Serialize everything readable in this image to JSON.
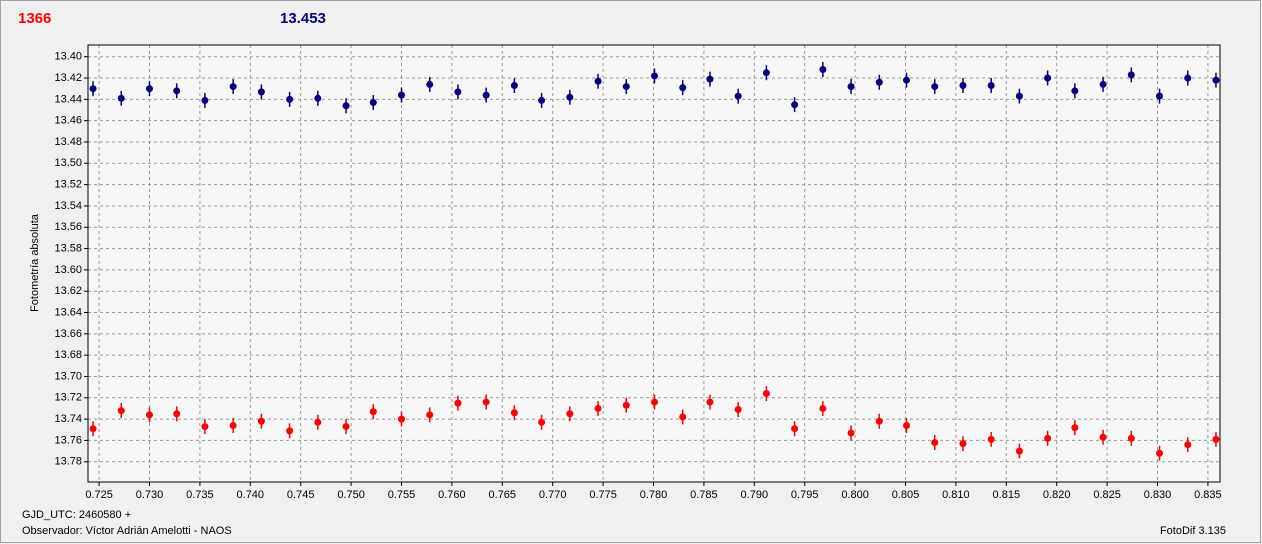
{
  "chart_data": {
    "type": "scatter",
    "header_left": "1366",
    "header_right": "13.453",
    "ylabel": "Fotometría absoluta",
    "footer_date": "GJD_UTC: 2460580 +",
    "footer_observer": "Observador: Víctor Adrián Amelotti - NAOS",
    "footer_software": "FotoDif 3.135",
    "xlim": [
      0.7239,
      0.8362
    ],
    "ylim": [
      13.389,
      13.799
    ],
    "y_inverted": true,
    "grid": true,
    "xticks": [
      0.725,
      {
        "value": 0.73,
        "label": "0.730"
      },
      0.735,
      {
        "value": 0.74,
        "label": "0.740"
      },
      0.745,
      {
        "value": 0.75,
        "label": "0.750"
      },
      0.755,
      {
        "value": 0.76,
        "label": "0.760"
      },
      0.765,
      {
        "value": 0.77,
        "label": "0.770"
      },
      0.775,
      {
        "value": 0.78,
        "label": "0.780"
      },
      0.785,
      {
        "value": 0.79,
        "label": "0.790"
      },
      0.795,
      {
        "value": 0.8,
        "label": "0.800"
      },
      0.805,
      {
        "value": 0.81,
        "label": "0.810"
      },
      0.815,
      {
        "value": 0.82,
        "label": "0.820"
      },
      0.825,
      {
        "value": 0.83,
        "label": "0.830"
      },
      0.835
    ],
    "yticks": [
      {
        "value": 13.4,
        "label": "13.40"
      },
      13.42,
      13.44,
      13.46,
      13.48,
      {
        "value": 13.5,
        "label": "13.50"
      },
      13.52,
      13.54,
      13.56,
      13.58,
      {
        "value": 13.6,
        "label": "13.60"
      },
      13.62,
      13.64,
      13.66,
      13.68,
      {
        "value": 13.7,
        "label": "13.70"
      },
      13.72,
      13.74,
      13.76,
      13.78
    ],
    "x": [
      0.7244,
      0.7272,
      0.73,
      0.7327,
      0.7355,
      0.7383,
      0.7411,
      0.7439,
      0.7467,
      0.7495,
      0.7522,
      0.755,
      0.7578,
      0.7606,
      0.7634,
      0.7662,
      0.7689,
      0.7717,
      0.7745,
      0.7773,
      0.7801,
      0.7829,
      0.7856,
      0.7884,
      0.7912,
      0.794,
      0.7968,
      0.7996,
      0.8024,
      0.8051,
      0.8079,
      0.8107,
      0.8135,
      0.8163,
      0.8191,
      0.8218,
      0.8246,
      0.8274,
      0.8302,
      0.833,
      0.8358
    ],
    "series": [
      {
        "color": "#000080",
        "error": 0.007,
        "values": [
          13.43,
          13.439,
          13.43,
          13.432,
          13.441,
          13.428,
          13.433,
          13.44,
          13.439,
          13.446,
          13.443,
          13.436,
          13.426,
          13.433,
          13.436,
          13.427,
          13.441,
          13.438,
          13.423,
          13.428,
          13.418,
          13.429,
          13.421,
          13.437,
          13.415,
          13.445,
          13.412,
          13.428,
          13.424,
          13.422,
          13.428,
          13.427,
          13.427,
          13.437,
          13.42,
          13.432,
          13.426,
          13.417,
          13.437,
          13.42,
          13.422
        ]
      },
      {
        "color": "#ff0000",
        "error": 0.007,
        "values": [
          13.749,
          13.732,
          13.736,
          13.735,
          13.747,
          13.746,
          13.742,
          13.751,
          13.743,
          13.747,
          13.733,
          13.74,
          13.736,
          13.725,
          13.724,
          13.734,
          13.743,
          13.735,
          13.73,
          13.727,
          13.724,
          13.738,
          13.724,
          13.731,
          13.716,
          13.749,
          13.73,
          13.753,
          13.742,
          13.746,
          13.762,
          13.763,
          13.759,
          13.77,
          13.758,
          13.748,
          13.757,
          13.758,
          13.772,
          13.764,
          13.759
        ]
      }
    ]
  }
}
